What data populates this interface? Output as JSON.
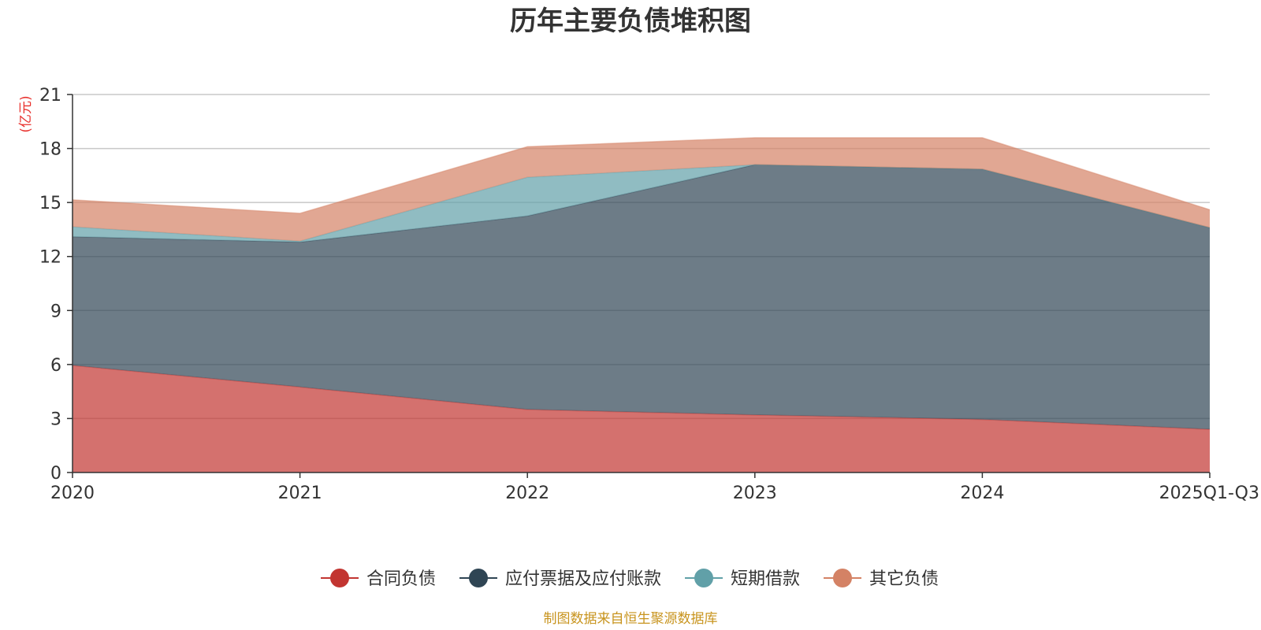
{
  "chart_data": {
    "type": "area",
    "stacked": true,
    "title": "历年主要负债堆积图",
    "ylabel": "(亿元)",
    "categories": [
      "2020",
      "2021",
      "2022",
      "2023",
      "2024",
      "2025Q1-Q3"
    ],
    "ylim": [
      0,
      21
    ],
    "yticks": [
      0,
      3,
      6,
      9,
      12,
      15,
      18,
      21
    ],
    "grid": true,
    "legend_position": "bottom",
    "series": [
      {
        "name": "合同负债",
        "color": "#c23531",
        "values": [
          5.95,
          4.75,
          3.5,
          3.2,
          2.95,
          2.4
        ]
      },
      {
        "name": "应付票据及应付账款",
        "color": "#2f4554",
        "values": [
          7.15,
          8.05,
          10.75,
          13.9,
          13.9,
          11.2
        ]
      },
      {
        "name": "短期借款",
        "color": "#61a0a8",
        "values": [
          0.55,
          0.05,
          2.15,
          0.0,
          0.0,
          0.0
        ]
      },
      {
        "name": "其它负债",
        "color": "#d48265",
        "values": [
          1.5,
          1.55,
          1.7,
          1.5,
          1.75,
          1.0
        ]
      }
    ]
  },
  "footer": {
    "source": "制图数据来自恒生聚源数据库"
  }
}
